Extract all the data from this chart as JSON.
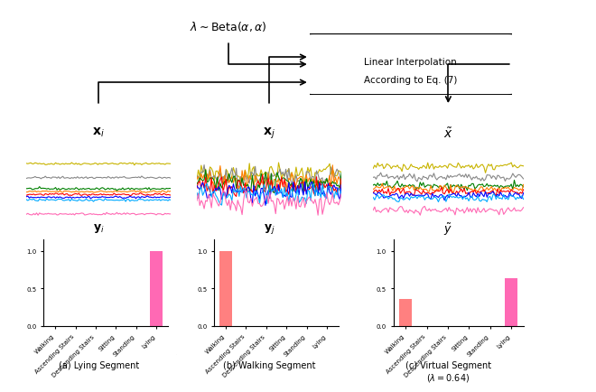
{
  "categories": [
    "Walking",
    "Ascending Stairs",
    "Descending Stairs",
    "Sitting",
    "Standing",
    "Lying"
  ],
  "bar_yi": [
    0,
    0,
    0,
    0,
    0,
    1.0
  ],
  "bar_yj": [
    1.0,
    0,
    0,
    0,
    0,
    0
  ],
  "bar_ytilde": [
    0.36,
    0,
    0,
    0,
    0,
    0.64
  ],
  "bar_color_yi": "#FF69B4",
  "bar_color_yj": "#FF8080",
  "bar_color_ytilde_walking": "#FF8080",
  "bar_color_ytilde_lying": "#FF69B4",
  "line_colors_lying": [
    "#c8b400",
    "#888888",
    "#008000",
    "#ff7f00",
    "#ff0000",
    "#0000ff",
    "#00aaff",
    "#ff69b4"
  ],
  "line_colors_walking": [
    "#c8b400",
    "#888888",
    "#ff7f00",
    "#008000",
    "#ff0000",
    "#0000ff",
    "#00aaff",
    "#ff69b4"
  ],
  "title_xi": "x$_i$",
  "title_xj": "x$_j$",
  "title_xtilde": "$\\tilde{x}$",
  "title_yi": "y$_i$",
  "title_yj": "y$_j$",
  "title_ytilde": "$\\tilde{y}$",
  "caption_a": "(a) Lying Segment",
  "caption_b": "(b) Walking Segment",
  "caption_c": "(c) Virtual Segment\n($\\lambda = 0.64$)",
  "top_label": "$\\lambda \\sim \\mathrm{Beta}(\\alpha, \\alpha)$",
  "box_label": "Linear Interpolation\nAccording to Eq. (7)",
  "background": "#ffffff"
}
